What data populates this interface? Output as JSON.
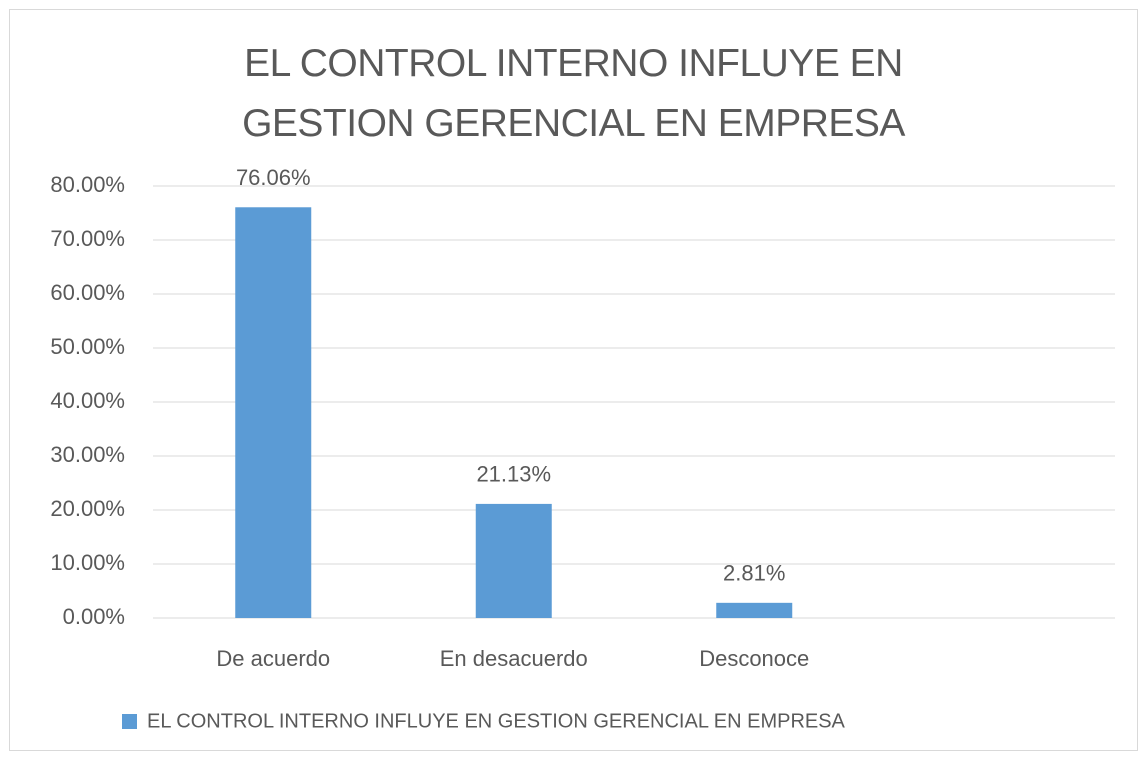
{
  "chart_data": {
    "type": "bar",
    "title": "EL CONTROL INTERNO INFLUYE EN GESTION GERENCIAL EN EMPRESA",
    "categories": [
      "De acuerdo",
      "En desacuerdo",
      "Desconoce",
      null
    ],
    "series": [
      {
        "name": "EL CONTROL INTERNO INFLUYE EN GESTION GERENCIAL EN EMPRESA",
        "color": "#5b9bd5",
        "values": [
          76.06,
          21.13,
          2.81,
          null
        ],
        "value_labels": [
          "76.06%",
          "21.13%",
          "2.81%",
          null
        ]
      }
    ],
    "ylim": [
      0,
      80
    ],
    "yticks": [
      {
        "value": 0,
        "label": "0.00%"
      },
      {
        "value": 10,
        "label": "10.00%"
      },
      {
        "value": 20,
        "label": "20.00%"
      },
      {
        "value": 30,
        "label": "30.00%"
      },
      {
        "value": 40,
        "label": "40.00%"
      },
      {
        "value": 50,
        "label": "50.00%"
      },
      {
        "value": 60,
        "label": "60.00%"
      },
      {
        "value": 70,
        "label": "70.00%"
      },
      {
        "value": 80,
        "label": "80.00%"
      }
    ],
    "grid": true,
    "legend": "bottom"
  }
}
